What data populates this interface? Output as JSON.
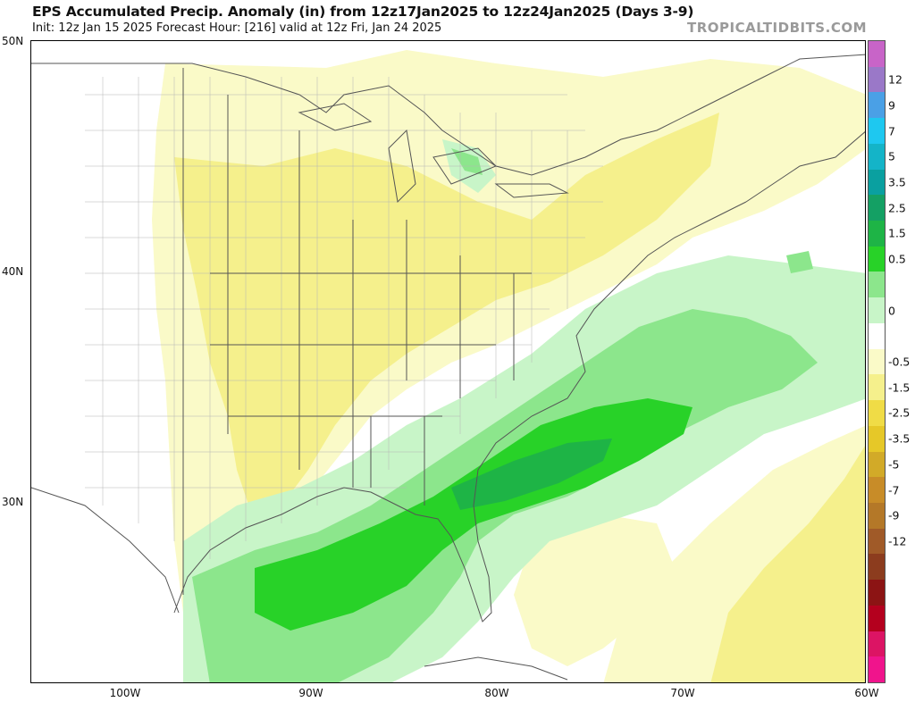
{
  "header": {
    "title": "EPS Accumulated Precip. Anomaly (in) from 12z17Jan2025 to 12z24Jan2025 (Days 3-9)",
    "subtitle": "Init: 12z Jan 15 2025   Forecast Hour: [216]   valid at 12z Fri, Jan 24 2025",
    "brand": "TROPICALTIDBITS.COM"
  },
  "axes": {
    "lat_labels": [
      "50N",
      "40N",
      "30N"
    ],
    "lon_labels": [
      "100W",
      "90W",
      "80W",
      "70W",
      "60W"
    ]
  },
  "colorbar": {
    "labels": [
      "12",
      "9",
      "7",
      "5",
      "3.5",
      "2.5",
      "1.5",
      "0.5",
      "0",
      "-0.5",
      "-1.5",
      "-2.5",
      "-3.5",
      "-5",
      "-7",
      "-9",
      "-12"
    ],
    "colors": [
      "#c864c8",
      "#9a78c8",
      "#4aa0e6",
      "#1ec8f0",
      "#14b4c8",
      "#0aa0a0",
      "#14a064",
      "#1eb446",
      "#28d228",
      "#8ce68c",
      "#c8f5c8",
      "#ffffff",
      "#fafac8",
      "#f5f08c",
      "#f0dc46",
      "#e6c828",
      "#d2aa28",
      "#c88c28",
      "#b47828",
      "#a05a28",
      "#8c3c1e",
      "#8c1414",
      "#b4001e",
      "#dc1464",
      "#f0148c"
    ]
  },
  "map": {
    "legend_units": "in",
    "colors": {
      "dry_light": "#fafac8",
      "dry_medium": "#f5f08c",
      "wet_light": "#c8f5c8",
      "wet_medium": "#8ce68c",
      "wet_heavy": "#28d228",
      "wet_max": "#1eb446",
      "land_line": "#555555",
      "county_line": "#b4b4b4"
    }
  }
}
